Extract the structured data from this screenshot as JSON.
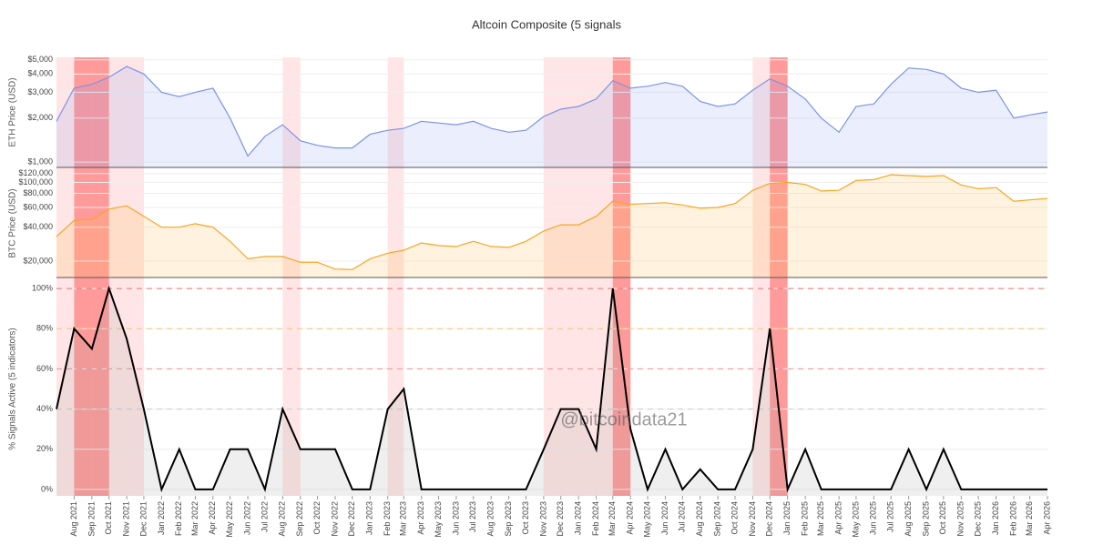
{
  "chart_data": {
    "type": "line",
    "title": "Altcoin Composite (5 signals",
    "watermark": "@bitcoindata21",
    "xlim": [
      "2021-07",
      "2026-04"
    ],
    "x": [
      "2021-07",
      "2021-08",
      "2021-09",
      "2021-10",
      "2021-11",
      "2021-12",
      "2022-01",
      "2022-02",
      "2022-03",
      "2022-04",
      "2022-05",
      "2022-06",
      "2022-07",
      "2022-08",
      "2022-09",
      "2022-10",
      "2022-11",
      "2022-12",
      "2023-01",
      "2023-02",
      "2023-03",
      "2023-04",
      "2023-05",
      "2023-06",
      "2023-07",
      "2023-08",
      "2023-09",
      "2023-10",
      "2023-11",
      "2023-12",
      "2024-01",
      "2024-02",
      "2024-03",
      "2024-04",
      "2024-05",
      "2024-06",
      "2024-07",
      "2024-08",
      "2024-09",
      "2024-10",
      "2024-11",
      "2024-12",
      "2025-01",
      "2025-02",
      "2025-03",
      "2025-04",
      "2025-05",
      "2025-06",
      "2025-07",
      "2025-08",
      "2025-09",
      "2025-10",
      "2025-11",
      "2025-12",
      "2026-01",
      "2026-02",
      "2026-03",
      "2026-04"
    ],
    "xticks": [
      {
        "value": "2021-08",
        "label": "Aug 2021"
      },
      {
        "value": "2021-09",
        "label": "Sep 2021"
      },
      {
        "value": "2021-10",
        "label": "Oct 2021"
      },
      {
        "value": "2021-11",
        "label": "Nov 2021"
      },
      {
        "value": "2021-12",
        "label": "Dec 2021"
      },
      {
        "value": "2022-01",
        "label": "Jan 2022"
      },
      {
        "value": "2022-02",
        "label": "Feb 2022"
      },
      {
        "value": "2022-03",
        "label": "Mar 2022"
      },
      {
        "value": "2022-04",
        "label": "Apr 2022"
      },
      {
        "value": "2022-05",
        "label": "May 2022"
      },
      {
        "value": "2022-06",
        "label": "Jun 2022"
      },
      {
        "value": "2022-07",
        "label": "Jul 2022"
      },
      {
        "value": "2022-08",
        "label": "Aug 2022"
      },
      {
        "value": "2022-09",
        "label": "Sep 2022"
      },
      {
        "value": "2022-10",
        "label": "Oct 2022"
      },
      {
        "value": "2022-11",
        "label": "Nov 2022"
      },
      {
        "value": "2022-12",
        "label": "Dec 2022"
      },
      {
        "value": "2023-01",
        "label": "Jan 2023"
      },
      {
        "value": "2023-02",
        "label": "Feb 2023"
      },
      {
        "value": "2023-03",
        "label": "Mar 2023"
      },
      {
        "value": "2023-04",
        "label": "Apr 2023"
      },
      {
        "value": "2023-05",
        "label": "May 2023"
      },
      {
        "value": "2023-06",
        "label": "Jun 2023"
      },
      {
        "value": "2023-07",
        "label": "Jul 2023"
      },
      {
        "value": "2023-08",
        "label": "Aug 2023"
      },
      {
        "value": "2023-09",
        "label": "Sep 2023"
      },
      {
        "value": "2023-10",
        "label": "Oct 2023"
      },
      {
        "value": "2023-11",
        "label": "Nov 2023"
      },
      {
        "value": "2023-12",
        "label": "Dec 2023"
      },
      {
        "value": "2024-01",
        "label": "Jan 2024"
      },
      {
        "value": "2024-02",
        "label": "Feb 2024"
      },
      {
        "value": "2024-03",
        "label": "Mar 2024"
      },
      {
        "value": "2024-04",
        "label": "Apr 2024"
      },
      {
        "value": "2024-05",
        "label": "May 2024"
      },
      {
        "value": "2024-06",
        "label": "Jun 2024"
      },
      {
        "value": "2024-07",
        "label": "Jul 2024"
      },
      {
        "value": "2024-08",
        "label": "Aug 2024"
      },
      {
        "value": "2024-09",
        "label": "Sep 2024"
      },
      {
        "value": "2024-10",
        "label": "Oct 2024"
      },
      {
        "value": "2024-11",
        "label": "Nov 2024"
      },
      {
        "value": "2024-12",
        "label": "Dec 2024"
      },
      {
        "value": "2025-01",
        "label": "Jan 2025"
      },
      {
        "value": "2025-02",
        "label": "Feb 2025"
      },
      {
        "value": "2025-03",
        "label": "Mar 2025"
      },
      {
        "value": "2025-04",
        "label": "Apr 2025"
      },
      {
        "value": "2025-05",
        "label": "May 2025"
      },
      {
        "value": "2025-06",
        "label": "Jun 2025"
      },
      {
        "value": "2025-07",
        "label": "Jul 2025"
      },
      {
        "value": "2025-08",
        "label": "Aug 2025"
      },
      {
        "value": "2025-09",
        "label": "Sep 2025"
      },
      {
        "value": "2025-10",
        "label": "Oct 2025"
      },
      {
        "value": "2025-11",
        "label": "Nov 2025"
      },
      {
        "value": "2025-12",
        "label": "Dec 2025"
      },
      {
        "value": "2026-01",
        "label": "Jan 2026"
      },
      {
        "value": "2026-02",
        "label": "Feb 2026"
      },
      {
        "value": "2026-03",
        "label": "Mar 2026"
      },
      {
        "value": "2026-04",
        "label": "Apr 2026"
      }
    ],
    "highlights": [
      {
        "start": "2021-07",
        "end": "2021-12",
        "color": "rgba(255,150,150,0.25)"
      },
      {
        "start": "2022-08",
        "end": "2022-09",
        "color": "rgba(255,150,150,0.25)"
      },
      {
        "start": "2023-02",
        "end": "2023-03",
        "color": "rgba(255,150,150,0.25)"
      },
      {
        "start": "2023-11",
        "end": "2024-04",
        "color": "rgba(255,150,150,0.25)"
      },
      {
        "start": "2024-11",
        "end": "2025-01",
        "color": "rgba(255,150,150,0.25)"
      },
      {
        "start": "2021-08",
        "end": "2021-09",
        "color": "rgba(255,80,80,0.5)"
      },
      {
        "start": "2021-09",
        "end": "2021-10",
        "color": "rgba(255,80,80,0.5)"
      },
      {
        "start": "2024-03",
        "end": "2024-04",
        "color": "rgba(255,80,80,0.5)"
      },
      {
        "start": "2024-12",
        "end": "2025-01",
        "color": "rgba(255,80,80,0.5)"
      }
    ],
    "panels": [
      {
        "ylabel": "ETH Price (USD)",
        "log": true,
        "ylim": [
          920,
          5200
        ],
        "color": "#7b93e8",
        "fill": "rgba(120,150,240,0.15)",
        "yticks": [
          {
            "value": 1000,
            "label": "$1,000"
          },
          {
            "value": 2000,
            "label": "$2,000"
          },
          {
            "value": 3000,
            "label": "$3,000"
          },
          {
            "value": 4000,
            "label": "$4,000"
          },
          {
            "value": 5000,
            "label": "$5,000"
          }
        ],
        "values": [
          1900,
          3200,
          3400,
          3800,
          4500,
          4000,
          3000,
          2800,
          3000,
          3200,
          2000,
          1100,
          1500,
          1800,
          1400,
          1300,
          1250,
          1250,
          1550,
          1650,
          1700,
          1900,
          1850,
          1800,
          1900,
          1700,
          1600,
          1650,
          2050,
          2300,
          2400,
          2700,
          3600,
          3200,
          3300,
          3500,
          3300,
          2600,
          2400,
          2500,
          3100,
          3700,
          3300,
          2700,
          2000,
          1600,
          2400,
          2500,
          3400,
          4400,
          4300,
          4000,
          3200,
          3000,
          3100,
          2000,
          2100,
          2200
        ]
      },
      {
        "ylabel": "BTC Price (USD)",
        "log": true,
        "ylim": [
          14300,
          131000
        ],
        "color": "#f5a623",
        "fill": "rgba(255,190,90,0.2)",
        "yticks": [
          {
            "value": 20000,
            "label": "$20,000"
          },
          {
            "value": 40000,
            "label": "$40,000"
          },
          {
            "value": 60000,
            "label": "$60,000"
          },
          {
            "value": 80000,
            "label": "$80,000"
          },
          {
            "value": 100000,
            "label": "$100,000"
          },
          {
            "value": 120000,
            "label": "$120,000"
          }
        ],
        "values": [
          33000,
          46000,
          47000,
          58000,
          62000,
          50000,
          40000,
          40000,
          43000,
          40000,
          30000,
          21000,
          22000,
          22000,
          19500,
          19500,
          17000,
          16800,
          21000,
          23500,
          25000,
          29000,
          27500,
          27000,
          30000,
          27000,
          26500,
          30000,
          37000,
          42000,
          42000,
          50000,
          68000,
          64000,
          65000,
          66000,
          63000,
          59000,
          60000,
          65000,
          85000,
          98000,
          100000,
          96000,
          84000,
          85000,
          104000,
          106000,
          117000,
          115000,
          113000,
          115000,
          95000,
          88000,
          90000,
          68000,
          70000,
          72000
        ]
      },
      {
        "ylabel": "% Signals Active (5 indicators)",
        "log": false,
        "ylim": [
          -3.2,
          103.2
        ],
        "color": "#000000",
        "fill": "rgba(150,150,150,0.15)",
        "yticks": [
          {
            "value": 0,
            "label": "0%"
          },
          {
            "value": 20,
            "label": "20%"
          },
          {
            "value": 40,
            "label": "40%"
          },
          {
            "value": 60,
            "label": "60%"
          },
          {
            "value": 80,
            "label": "80%"
          },
          {
            "value": 100,
            "label": "100%"
          }
        ],
        "thresholds": [
          {
            "value": 100,
            "color": "#f07070"
          },
          {
            "value": 80,
            "color": "#f5c26b"
          },
          {
            "value": 60,
            "color": "#f09090"
          },
          {
            "value": 40,
            "color": "#cccccc"
          }
        ],
        "values": [
          40,
          80,
          70,
          100,
          75,
          40,
          0,
          20,
          0,
          0,
          20,
          20,
          0,
          40,
          20,
          20,
          20,
          0,
          0,
          40,
          50,
          0,
          0,
          0,
          0,
          0,
          0,
          0,
          20,
          40,
          40,
          20,
          100,
          30,
          0,
          20,
          0,
          10,
          0,
          0,
          20,
          80,
          0,
          20,
          0,
          0,
          0,
          0,
          0,
          20,
          0,
          20,
          0,
          0,
          0,
          0,
          0,
          0
        ]
      }
    ]
  }
}
